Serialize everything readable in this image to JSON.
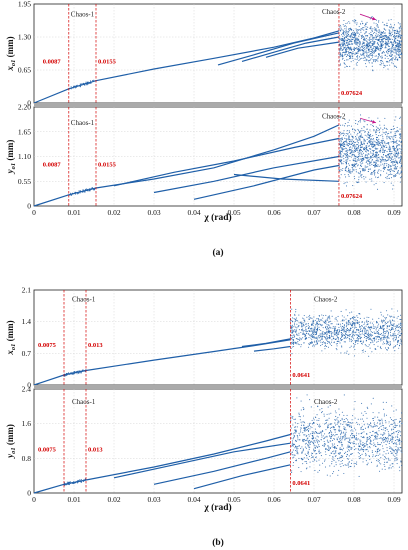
{
  "chart_data": [
    {
      "caption": "(a)",
      "xlabel": "χ (rad)",
      "xlim": [
        0,
        0.092
      ],
      "xticks": [
        "0",
        "0.01",
        "0.02",
        "0.03",
        "0.04",
        "0.05",
        "0.06",
        "0.07",
        "0.08",
        "0.09"
      ],
      "subplots": [
        {
          "type": "scatter",
          "ylabel_main": "x",
          "ylabel_sub": "o1",
          "ylabel_unit": "(mm)",
          "ylim": [
            0,
            1.95
          ],
          "yticks": [
            "0",
            "0.65",
            "1.30",
            "1.95"
          ],
          "thresholds": [
            "0.0087",
            "0.0155",
            "0.07624"
          ],
          "threshold_x": [
            0.0087,
            0.0155,
            0.07624
          ],
          "annotations": [
            {
              "text": "Chaos-1",
              "x": 0.0087,
              "y": 1.7
            },
            {
              "text": "Chaos-2",
              "x": 0.072,
              "y": 1.75
            }
          ],
          "arrow": {
            "from": [
              0.0815,
              1.75
            ],
            "to": [
              0.0855,
              1.64
            ]
          },
          "branches": [
            [
              [
                0,
                0
              ],
              [
                0.0087,
                0.28
              ],
              [
                0.0155,
                0.44
              ],
              [
                0.03,
                0.67
              ],
              [
                0.045,
                0.88
              ],
              [
                0.06,
                1.1
              ],
              [
                0.07,
                1.28
              ],
              [
                0.0762,
                1.42
              ]
            ],
            [
              [
                0.046,
                0.75
              ],
              [
                0.055,
                0.95
              ],
              [
                0.065,
                1.18
              ],
              [
                0.0762,
                1.38
              ]
            ],
            [
              [
                0.052,
                0.82
              ],
              [
                0.06,
                1.0
              ],
              [
                0.068,
                1.18
              ],
              [
                0.0762,
                1.3
              ]
            ],
            [
              [
                0.058,
                0.9
              ],
              [
                0.066,
                1.08
              ],
              [
                0.0762,
                1.2
              ]
            ]
          ],
          "chaos_region": {
            "x": [
              0.0762,
              0.092
            ],
            "y": [
              0.55,
              1.78
            ]
          }
        },
        {
          "type": "scatter",
          "ylabel_main": "y",
          "ylabel_sub": "o1",
          "ylabel_unit": "(mm)",
          "ylim": [
            0,
            2.2
          ],
          "yticks": [
            "0",
            "0.55",
            "1.10",
            "1.65",
            "2.20"
          ],
          "thresholds": [
            "0.0087",
            "0.0155",
            "0.07624"
          ],
          "threshold_x": [
            0.0087,
            0.0155,
            0.07624
          ],
          "annotations": [
            {
              "text": "Chaos-1",
              "x": 0.0087,
              "y": 1.8
            },
            {
              "text": "Chaos-2",
              "x": 0.072,
              "y": 1.95
            }
          ],
          "arrow": {
            "from": [
              0.0815,
              1.95
            ],
            "to": [
              0.0855,
              1.85
            ]
          },
          "branches": [
            [
              [
                0,
                0
              ],
              [
                0.0087,
                0.25
              ],
              [
                0.0155,
                0.4
              ],
              [
                0.03,
                0.6
              ],
              [
                0.045,
                0.85
              ],
              [
                0.06,
                1.25
              ],
              [
                0.07,
                1.55
              ],
              [
                0.0762,
                1.8
              ]
            ],
            [
              [
                0.02,
                0.45
              ],
              [
                0.035,
                0.75
              ],
              [
                0.05,
                1.0
              ],
              [
                0.065,
                1.3
              ],
              [
                0.0762,
                1.5
              ]
            ],
            [
              [
                0.03,
                0.3
              ],
              [
                0.045,
                0.55
              ],
              [
                0.06,
                0.85
              ],
              [
                0.0762,
                1.1
              ]
            ],
            [
              [
                0.04,
                0.15
              ],
              [
                0.055,
                0.45
              ],
              [
                0.07,
                0.8
              ],
              [
                0.0762,
                0.9
              ]
            ],
            [
              [
                0.05,
                0.7
              ],
              [
                0.062,
                0.6
              ],
              [
                0.0762,
                0.55
              ]
            ]
          ],
          "chaos_region": {
            "x": [
              0.0762,
              0.092
            ],
            "y": [
              0.25,
              2.15
            ]
          }
        }
      ]
    },
    {
      "caption": "(b)",
      "xlabel": "χ (rad)",
      "xlim": [
        0,
        0.092
      ],
      "xticks": [
        "0",
        "0.01",
        "0.02",
        "0.03",
        "0.04",
        "0.05",
        "0.06",
        "0.07",
        "0.08",
        "0.09"
      ],
      "subplots": [
        {
          "type": "scatter",
          "ylabel_main": "x",
          "ylabel_sub": "o1",
          "ylabel_unit": "(mm)",
          "ylim": [
            0,
            2.1
          ],
          "yticks": [
            "0",
            "0.7",
            "1.4",
            "2.1"
          ],
          "thresholds": [
            "0.0075",
            "0.013",
            "0.0641"
          ],
          "threshold_x": [
            0.0075,
            0.013,
            0.0641
          ],
          "annotations": [
            {
              "text": "Chaos-1",
              "x": 0.009,
              "y": 1.85
            },
            {
              "text": "Chaos-2",
              "x": 0.07,
              "y": 1.85
            }
          ],
          "branches": [
            [
              [
                0,
                0
              ],
              [
                0.0075,
                0.22
              ],
              [
                0.013,
                0.32
              ],
              [
                0.03,
                0.55
              ],
              [
                0.045,
                0.74
              ],
              [
                0.055,
                0.87
              ],
              [
                0.0641,
                1.0
              ]
            ],
            [
              [
                0.052,
                0.85
              ],
              [
                0.058,
                0.92
              ],
              [
                0.0641,
                1.02
              ]
            ],
            [
              [
                0.055,
                0.75
              ],
              [
                0.06,
                0.8
              ],
              [
                0.0641,
                0.85
              ]
            ]
          ],
          "chaos_region": {
            "x": [
              0.0641,
              0.092
            ],
            "y": [
              0.6,
              1.75
            ]
          }
        },
        {
          "type": "scatter",
          "ylabel_main": "y",
          "ylabel_sub": "o1",
          "ylabel_unit": "(mm)",
          "ylim": [
            0,
            2.4
          ],
          "yticks": [
            "0",
            "0.8",
            "1.6",
            "2.4"
          ],
          "thresholds": [
            "0.0075",
            "0.013",
            "0.0641"
          ],
          "threshold_x": [
            0.0075,
            0.013,
            0.0641
          ],
          "annotations": [
            {
              "text": "Chaos-1",
              "x": 0.009,
              "y": 2.05
            },
            {
              "text": "Chaos-2",
              "x": 0.07,
              "y": 2.05
            }
          ],
          "branches": [
            [
              [
                0,
                0
              ],
              [
                0.0075,
                0.2
              ],
              [
                0.013,
                0.3
              ],
              [
                0.03,
                0.6
              ],
              [
                0.045,
                0.9
              ],
              [
                0.058,
                1.2
              ],
              [
                0.0641,
                1.35
              ]
            ],
            [
              [
                0.02,
                0.35
              ],
              [
                0.035,
                0.65
              ],
              [
                0.05,
                0.95
              ],
              [
                0.0641,
                1.15
              ]
            ],
            [
              [
                0.03,
                0.2
              ],
              [
                0.045,
                0.5
              ],
              [
                0.058,
                0.8
              ],
              [
                0.0641,
                0.95
              ]
            ],
            [
              [
                0.04,
                0.1
              ],
              [
                0.052,
                0.4
              ],
              [
                0.0641,
                0.65
              ]
            ]
          ],
          "chaos_region": {
            "x": [
              0.0641,
              0.092
            ],
            "y": [
              0.2,
              2.3
            ]
          }
        }
      ]
    }
  ],
  "colors": {
    "bifurcation": "#1f5fa8",
    "threshold": "#d40000",
    "grid": "#cccccc",
    "separator": "#aaaaaa",
    "arrow": "#c2188c"
  }
}
